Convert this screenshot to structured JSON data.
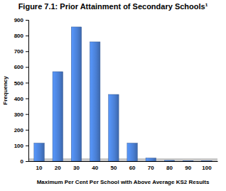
{
  "chart_data": {
    "type": "bar",
    "title": "Figure 7.1: Prior Attainment of Secondary Schools¹",
    "x_label": "Maximum Per Cent Per School with Above Average KS2 Results",
    "y_label": "Frequency",
    "categories": [
      "10",
      "20",
      "30",
      "40",
      "50",
      "60",
      "70",
      "80",
      "90",
      "100"
    ],
    "values": [
      115,
      570,
      855,
      760,
      425,
      115,
      20,
      5,
      3,
      2
    ],
    "color": "#4a7fd4",
    "ylim": [
      0,
      900
    ],
    "yticks": [
      0,
      100,
      200,
      300,
      400,
      500,
      600,
      700,
      800,
      900
    ],
    "grid": false
  }
}
